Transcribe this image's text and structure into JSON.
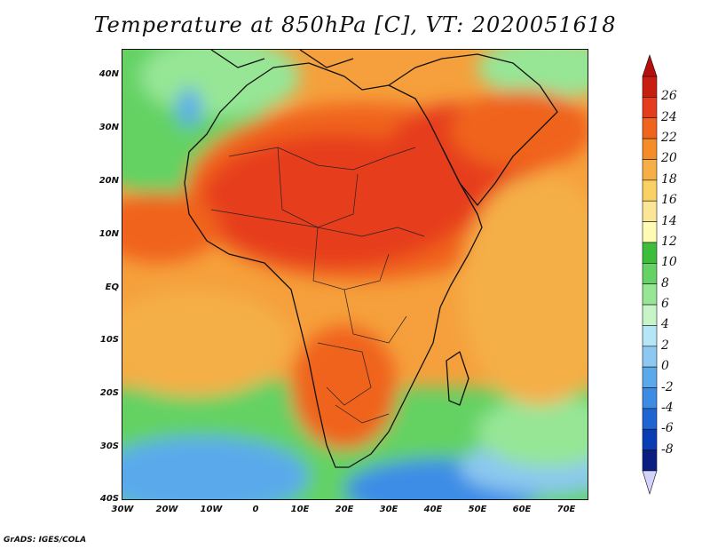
{
  "title": "Temperature at 850hPa [C], VT: 2020051618",
  "credit": "GrADS: IGES/COLA",
  "map": {
    "region": "Africa",
    "lon_range": [
      -30,
      75
    ],
    "lat_range": [
      -40,
      45
    ],
    "x_ticks": [
      "30W",
      "20W",
      "10W",
      "0",
      "10E",
      "20E",
      "30E",
      "40E",
      "50E",
      "60E",
      "70E"
    ],
    "y_ticks": [
      "40N",
      "30N",
      "20N",
      "10N",
      "EQ",
      "10S",
      "20S",
      "30S",
      "40S"
    ]
  },
  "colorbar": {
    "labels": [
      "26",
      "24",
      "22",
      "20",
      "18",
      "16",
      "14",
      "12",
      "10",
      "8",
      "6",
      "4",
      "2",
      "0",
      "-2",
      "-4",
      "-6",
      "-8"
    ],
    "colors": [
      "#c81e0f",
      "#e63c1e",
      "#f0641e",
      "#f58c28",
      "#f5af46",
      "#fad264",
      "#fae696",
      "#fffab4",
      "#3cbe3c",
      "#64d264",
      "#96e696",
      "#c8f5c8",
      "#b4e6f5",
      "#8cc8f0",
      "#5aaaeb",
      "#3c8ce6",
      "#1e64d2",
      "#0a3cb4",
      "#0a1e82"
    ],
    "top_arrow_color": "#b40f0a",
    "bottom_arrow_color": "#d2d2fa"
  }
}
